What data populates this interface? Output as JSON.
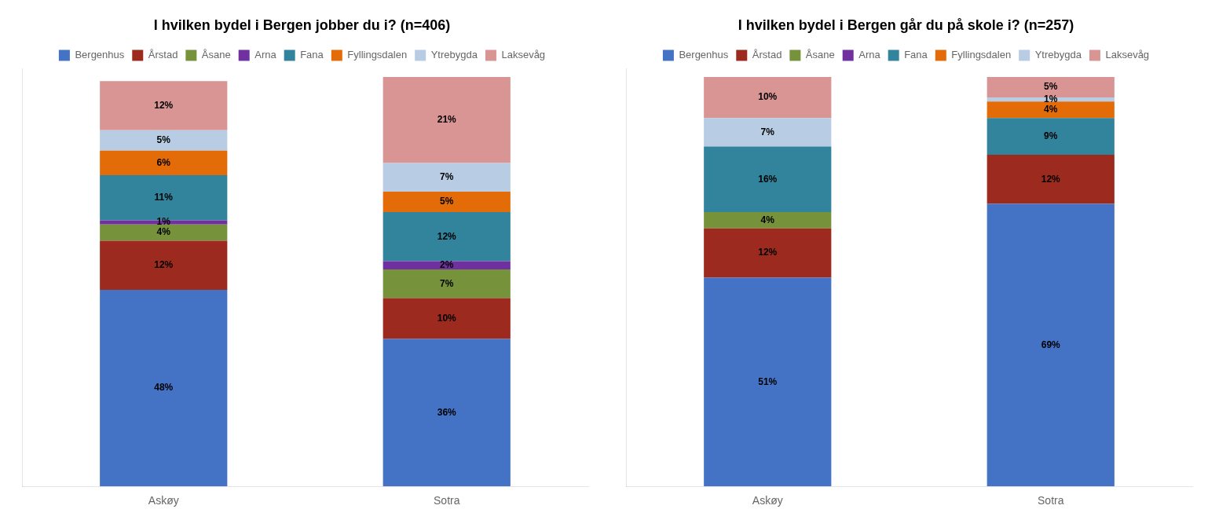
{
  "chart_data": [
    {
      "type": "bar",
      "stacked": true,
      "title": "I hvilken bydel i Bergen jobber du i? (n=406)",
      "categories": [
        "Askøy",
        "Sotra"
      ],
      "ylim": [
        0,
        102
      ],
      "grid": false,
      "legend": "top",
      "data_labels": true,
      "tick_labels": "x",
      "series": [
        {
          "name": "Bergenhus",
          "color": "#4472C4",
          "values": [
            48,
            36
          ],
          "value_labels": [
            "48%",
            "36%"
          ]
        },
        {
          "name": "Årstad",
          "color": "#9C2A1F",
          "values": [
            12,
            10
          ],
          "value_labels": [
            "12%",
            "10%"
          ]
        },
        {
          "name": "Åsane",
          "color": "#76933C",
          "values": [
            4,
            7
          ],
          "value_labels": [
            "4%",
            "7%"
          ]
        },
        {
          "name": "Arna",
          "color": "#7030A0",
          "values": [
            1,
            2
          ],
          "value_labels": [
            "1%",
            "2%"
          ]
        },
        {
          "name": "Fana",
          "color": "#31849B",
          "values": [
            11,
            12
          ],
          "value_labels": [
            "11%",
            "12%"
          ]
        },
        {
          "name": "Fyllingsdalen",
          "color": "#E36C09",
          "values": [
            6,
            5
          ],
          "value_labels": [
            "6%",
            "5%"
          ]
        },
        {
          "name": "Ytrebygda",
          "color": "#B8CCE4",
          "values": [
            5,
            7
          ],
          "value_labels": [
            "5%",
            "7%"
          ]
        },
        {
          "name": "Laksevåg",
          "color": "#D99594",
          "values": [
            12,
            21
          ],
          "value_labels": [
            "12%",
            "21%"
          ]
        }
      ]
    },
    {
      "type": "bar",
      "stacked": true,
      "title": "I hvilken bydel i Bergen går du på skole i? (n=257)",
      "categories": [
        "Askøy",
        "Sotra"
      ],
      "ylim": [
        0,
        102
      ],
      "grid": false,
      "legend": "top",
      "data_labels": true,
      "tick_labels": "x",
      "series": [
        {
          "name": "Bergenhus",
          "color": "#4472C4",
          "values": [
            51,
            69
          ],
          "value_labels": [
            "51%",
            "69%"
          ]
        },
        {
          "name": "Årstad",
          "color": "#9C2A1F",
          "values": [
            12,
            12
          ],
          "value_labels": [
            "12%",
            "12%"
          ]
        },
        {
          "name": "Åsane",
          "color": "#76933C",
          "values": [
            4,
            0
          ],
          "value_labels": [
            "4%",
            null
          ]
        },
        {
          "name": "Arna",
          "color": "#7030A0",
          "values": [
            0,
            0
          ],
          "value_labels": [
            null,
            null
          ]
        },
        {
          "name": "Fana",
          "color": "#31849B",
          "values": [
            16,
            9
          ],
          "value_labels": [
            "16%",
            "9%"
          ]
        },
        {
          "name": "Fyllingsdalen",
          "color": "#E36C09",
          "values": [
            0,
            4
          ],
          "value_labels": [
            null,
            "4%"
          ]
        },
        {
          "name": "Ytrebygda",
          "color": "#B8CCE4",
          "values": [
            7,
            1
          ],
          "value_labels": [
            "7%",
            "1%"
          ]
        },
        {
          "name": "Laksevåg",
          "color": "#D99594",
          "values": [
            10,
            5
          ],
          "value_labels": [
            "10%",
            "5%"
          ]
        }
      ]
    }
  ]
}
